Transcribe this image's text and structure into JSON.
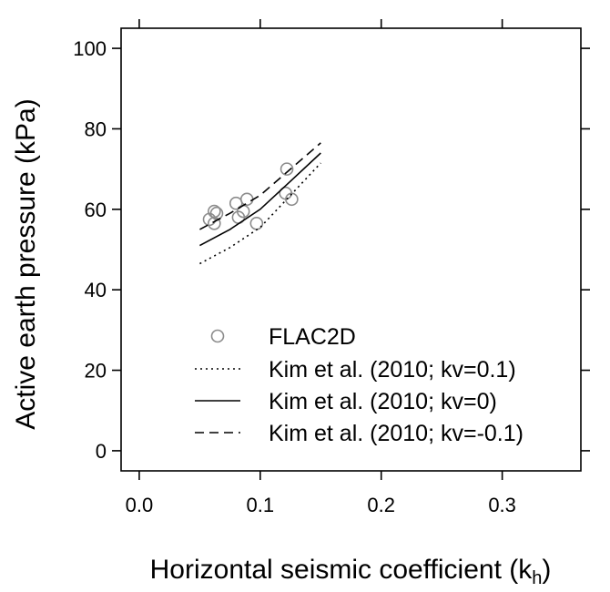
{
  "chart_data": {
    "type": "scatter",
    "xlabel": "Horizontal seismic coefficient (k",
    "xlabel_subscript": "h",
    "xlabel_suffix": ")",
    "ylabel": "Active earth pressure (kPa)",
    "xlim": [
      -0.015,
      0.365
    ],
    "ylim": [
      -5,
      105
    ],
    "x_ticks": [
      0.0,
      0.1,
      0.2,
      0.3
    ],
    "x_tick_labels": [
      "0.0",
      "0.1",
      "0.2",
      "0.3"
    ],
    "y_ticks": [
      0,
      20,
      40,
      60,
      80,
      100
    ],
    "y_tick_labels": [
      "0",
      "20",
      "40",
      "60",
      "80",
      "100"
    ],
    "grid": false,
    "legend_position": "bottom-right",
    "series": [
      {
        "name": "FLAC2D",
        "style": "circle",
        "color": "#8c8c8c",
        "x": [
          0.058,
          0.062,
          0.062,
          0.064,
          0.08,
          0.082,
          0.086,
          0.089,
          0.097,
          0.121,
          0.122,
          0.126
        ],
        "y": [
          57.5,
          59.5,
          56.5,
          59,
          61.5,
          58,
          59.5,
          62.5,
          56.5,
          64,
          70,
          62.5
        ]
      },
      {
        "name": "Kim et al. (2010; kv=0.1)",
        "style": "dotted",
        "color": "#000000",
        "x": [
          0.05,
          0.075,
          0.1,
          0.125,
          0.15
        ],
        "y": [
          46.5,
          50.5,
          55.5,
          63.5,
          71.5
        ]
      },
      {
        "name": "Kim et al. (2010; kv=0)",
        "style": "solid",
        "color": "#000000",
        "x": [
          0.05,
          0.075,
          0.1,
          0.125,
          0.15
        ],
        "y": [
          51,
          55,
          60,
          67,
          74
        ]
      },
      {
        "name": "Kim et al. (2010; kv=-0.1)",
        "style": "dashed",
        "color": "#000000",
        "x": [
          0.05,
          0.075,
          0.1,
          0.125,
          0.15
        ],
        "y": [
          55,
          59,
          63.5,
          70,
          76.5
        ]
      }
    ]
  }
}
